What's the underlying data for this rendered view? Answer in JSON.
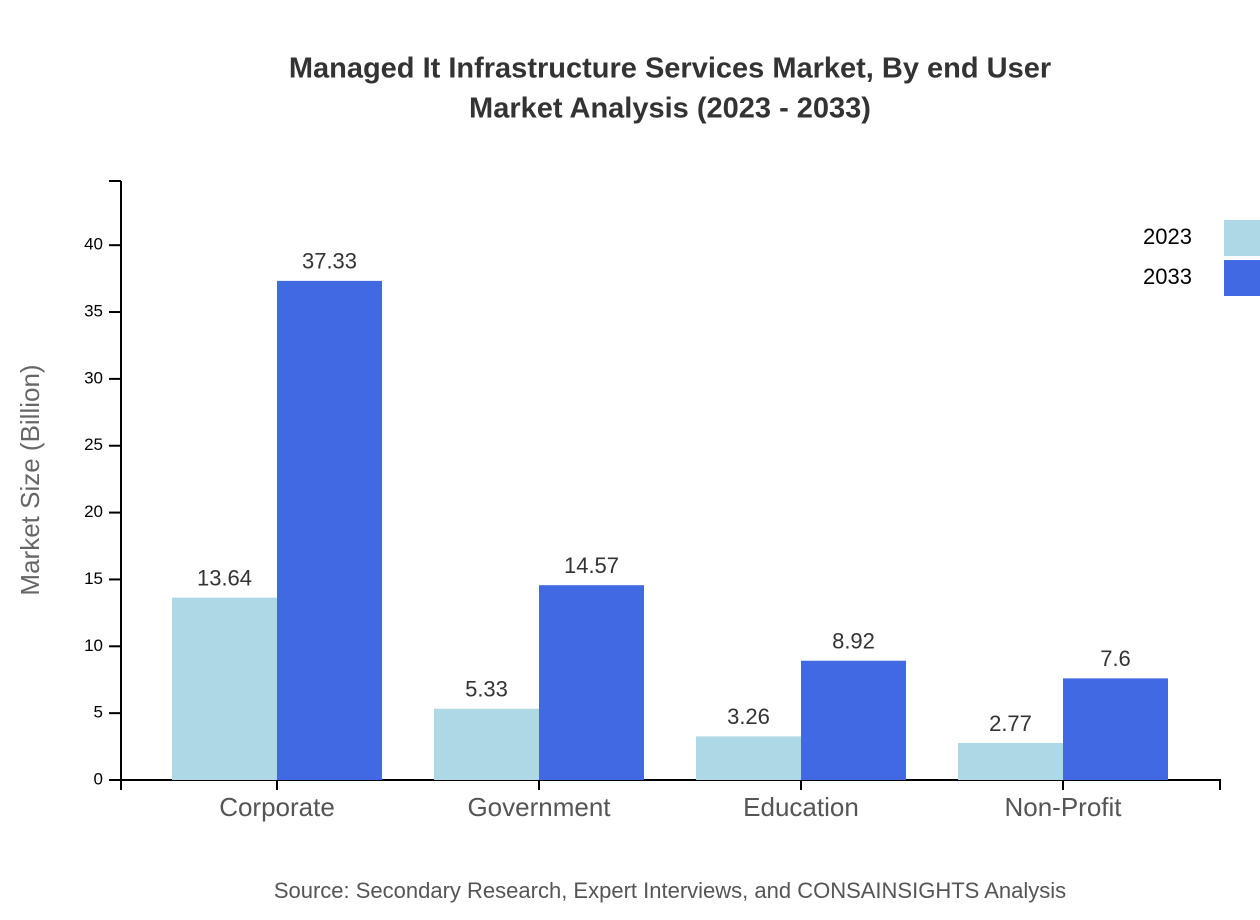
{
  "chart_data": {
    "type": "bar",
    "title": [
      "Managed It Infrastructure Services Market, By end User",
      "Market Analysis (2023 - 2033)"
    ],
    "y_label": "Market Size (Billion)",
    "source": "Source: Secondary Research, Expert Interviews, and CONSAINSIGHTS Analysis",
    "categories": [
      "Corporate",
      "Government",
      "Education",
      "Non-Profit"
    ],
    "series": [
      {
        "name": "2023",
        "color": "#add8e6",
        "values": [
          13.64,
          5.33,
          3.26,
          2.77
        ]
      },
      {
        "name": "2033",
        "color": "#4169e1",
        "values": [
          37.33,
          14.57,
          8.92,
          7.6
        ]
      }
    ],
    "ylim": [
      0,
      44.8
    ],
    "yticks": [
      0,
      5,
      10,
      15,
      20,
      25,
      30,
      35,
      40
    ],
    "grid": false
  }
}
